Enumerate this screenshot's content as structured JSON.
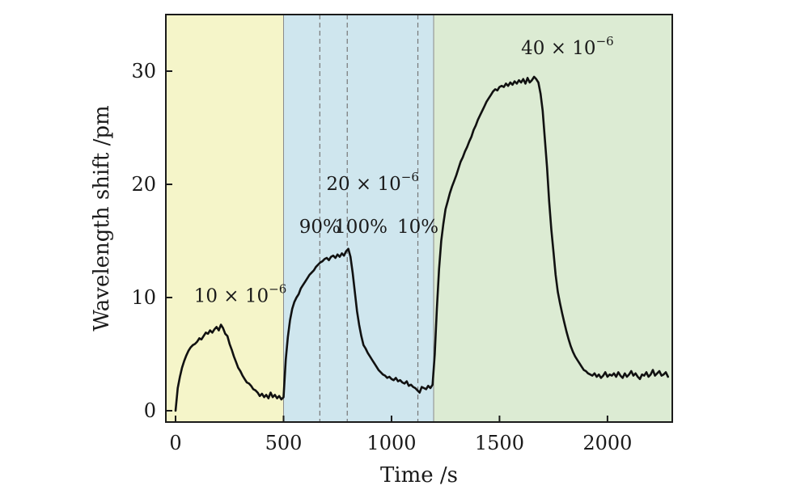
{
  "chart_data": {
    "type": "line",
    "title": "",
    "xlabel": "Time /s",
    "ylabel": "Wavelength shift /pm",
    "xlim": [
      -45,
      2300
    ],
    "ylim": [
      -1,
      35
    ],
    "xticks": [
      0,
      500,
      1000,
      1500,
      2000
    ],
    "yticks": [
      0,
      10,
      20,
      30
    ],
    "grid": false,
    "regions": [
      {
        "name": "10 ppm region",
        "x0": -45,
        "x1": 500,
        "color": "#f5f5c9"
      },
      {
        "name": "20 ppm region",
        "x0": 500,
        "x1": 1195,
        "color": "#cfe6ee"
      },
      {
        "name": "40 ppm region",
        "x0": 1195,
        "x1": 2300,
        "color": "#dcebd3"
      }
    ],
    "vlines": [
      {
        "name": "90-percent-line",
        "x": 668
      },
      {
        "name": "100-percent-line",
        "x": 795
      },
      {
        "name": "10-percent-line",
        "x": 1122
      }
    ],
    "annotations": [
      {
        "name": "conc-10",
        "base": "10 × 10",
        "sup": "−6",
        "x": 85,
        "y": 9.6
      },
      {
        "name": "conc-20",
        "base": "20 × 10",
        "sup": "−6",
        "x": 698,
        "y": 19.5
      },
      {
        "name": "conc-40",
        "base": "40 × 10",
        "sup": "−6",
        "x": 1600,
        "y": 31.5
      },
      {
        "name": "pct-90",
        "base": "90%",
        "x": 668,
        "y": 15.7,
        "anchor": "middle"
      },
      {
        "name": "pct-100",
        "base": "100%",
        "x": 858,
        "y": 15.7,
        "anchor": "middle"
      },
      {
        "name": "pct-10",
        "base": "10%",
        "x": 1122,
        "y": 15.7,
        "anchor": "middle"
      }
    ],
    "series": [
      {
        "name": "Wavelength shift",
        "color": "#111111",
        "points": [
          [
            0,
            0
          ],
          [
            10,
            2
          ],
          [
            20,
            3
          ],
          [
            30,
            3.8
          ],
          [
            40,
            4.4
          ],
          [
            50,
            4.9
          ],
          [
            60,
            5.3
          ],
          [
            70,
            5.6
          ],
          [
            80,
            5.8
          ],
          [
            90,
            5.9
          ],
          [
            100,
            6.1
          ],
          [
            110,
            6.4
          ],
          [
            120,
            6.3
          ],
          [
            130,
            6.6
          ],
          [
            140,
            6.9
          ],
          [
            150,
            6.8
          ],
          [
            160,
            7.1
          ],
          [
            170,
            6.9
          ],
          [
            180,
            7.2
          ],
          [
            190,
            7.4
          ],
          [
            200,
            7.1
          ],
          [
            210,
            7.6
          ],
          [
            220,
            7.3
          ],
          [
            230,
            6.8
          ],
          [
            240,
            6.6
          ],
          [
            250,
            5.9
          ],
          [
            260,
            5.4
          ],
          [
            270,
            4.8
          ],
          [
            280,
            4.3
          ],
          [
            290,
            3.8
          ],
          [
            300,
            3.5
          ],
          [
            310,
            3.1
          ],
          [
            320,
            2.8
          ],
          [
            330,
            2.5
          ],
          [
            340,
            2.4
          ],
          [
            350,
            2.2
          ],
          [
            360,
            1.9
          ],
          [
            370,
            1.8
          ],
          [
            380,
            1.6
          ],
          [
            390,
            1.3
          ],
          [
            400,
            1.5
          ],
          [
            410,
            1.2
          ],
          [
            420,
            1.4
          ],
          [
            430,
            1.1
          ],
          [
            440,
            1.6
          ],
          [
            450,
            1.2
          ],
          [
            460,
            1.4
          ],
          [
            470,
            1.1
          ],
          [
            480,
            1.3
          ],
          [
            490,
            1.0
          ],
          [
            500,
            1.2
          ],
          [
            510,
            4.5
          ],
          [
            520,
            6.5
          ],
          [
            530,
            8.0
          ],
          [
            540,
            9.0
          ],
          [
            550,
            9.6
          ],
          [
            560,
            10.0
          ],
          [
            570,
            10.3
          ],
          [
            580,
            10.8
          ],
          [
            590,
            11.1
          ],
          [
            600,
            11.4
          ],
          [
            610,
            11.7
          ],
          [
            620,
            12.0
          ],
          [
            630,
            12.2
          ],
          [
            640,
            12.4
          ],
          [
            650,
            12.7
          ],
          [
            660,
            12.9
          ],
          [
            670,
            13.1
          ],
          [
            680,
            13.2
          ],
          [
            690,
            13.4
          ],
          [
            700,
            13.5
          ],
          [
            710,
            13.3
          ],
          [
            720,
            13.6
          ],
          [
            730,
            13.7
          ],
          [
            740,
            13.5
          ],
          [
            750,
            13.8
          ],
          [
            760,
            13.6
          ],
          [
            770,
            13.9
          ],
          [
            780,
            13.7
          ],
          [
            790,
            14.1
          ],
          [
            800,
            14.3
          ],
          [
            810,
            13.6
          ],
          [
            820,
            12.2
          ],
          [
            830,
            10.5
          ],
          [
            840,
            8.8
          ],
          [
            850,
            7.6
          ],
          [
            860,
            6.6
          ],
          [
            870,
            5.8
          ],
          [
            880,
            5.5
          ],
          [
            890,
            5.1
          ],
          [
            900,
            4.8
          ],
          [
            910,
            4.5
          ],
          [
            920,
            4.2
          ],
          [
            930,
            3.9
          ],
          [
            940,
            3.6
          ],
          [
            950,
            3.4
          ],
          [
            960,
            3.2
          ],
          [
            970,
            3.1
          ],
          [
            980,
            2.9
          ],
          [
            990,
            3.0
          ],
          [
            1000,
            2.8
          ],
          [
            1010,
            2.7
          ],
          [
            1020,
            2.9
          ],
          [
            1030,
            2.6
          ],
          [
            1040,
            2.7
          ],
          [
            1050,
            2.5
          ],
          [
            1060,
            2.4
          ],
          [
            1070,
            2.6
          ],
          [
            1080,
            2.2
          ],
          [
            1090,
            2.3
          ],
          [
            1100,
            2.1
          ],
          [
            1110,
            2.0
          ],
          [
            1120,
            1.8
          ],
          [
            1130,
            1.6
          ],
          [
            1140,
            2.1
          ],
          [
            1150,
            2.0
          ],
          [
            1160,
            1.9
          ],
          [
            1170,
            2.2
          ],
          [
            1180,
            2.0
          ],
          [
            1190,
            2.3
          ],
          [
            1200,
            5.0
          ],
          [
            1210,
            9.0
          ],
          [
            1220,
            12.5
          ],
          [
            1230,
            15.0
          ],
          [
            1240,
            16.5
          ],
          [
            1250,
            17.8
          ],
          [
            1260,
            18.5
          ],
          [
            1270,
            19.2
          ],
          [
            1280,
            19.8
          ],
          [
            1290,
            20.3
          ],
          [
            1300,
            20.8
          ],
          [
            1310,
            21.4
          ],
          [
            1320,
            22.0
          ],
          [
            1330,
            22.4
          ],
          [
            1340,
            22.9
          ],
          [
            1350,
            23.3
          ],
          [
            1360,
            23.8
          ],
          [
            1370,
            24.2
          ],
          [
            1380,
            24.8
          ],
          [
            1390,
            25.2
          ],
          [
            1400,
            25.7
          ],
          [
            1410,
            26.1
          ],
          [
            1420,
            26.5
          ],
          [
            1430,
            26.9
          ],
          [
            1440,
            27.3
          ],
          [
            1450,
            27.6
          ],
          [
            1460,
            27.9
          ],
          [
            1470,
            28.2
          ],
          [
            1480,
            28.4
          ],
          [
            1490,
            28.3
          ],
          [
            1500,
            28.6
          ],
          [
            1510,
            28.7
          ],
          [
            1520,
            28.6
          ],
          [
            1530,
            28.9
          ],
          [
            1540,
            28.7
          ],
          [
            1550,
            29.0
          ],
          [
            1560,
            28.8
          ],
          [
            1570,
            29.1
          ],
          [
            1580,
            28.9
          ],
          [
            1590,
            29.2
          ],
          [
            1600,
            29.0
          ],
          [
            1610,
            29.3
          ],
          [
            1620,
            28.9
          ],
          [
            1630,
            29.4
          ],
          [
            1640,
            29.0
          ],
          [
            1650,
            29.2
          ],
          [
            1660,
            29.5
          ],
          [
            1670,
            29.3
          ],
          [
            1680,
            29.0
          ],
          [
            1690,
            28.0
          ],
          [
            1700,
            26.5
          ],
          [
            1710,
            24.0
          ],
          [
            1720,
            21.5
          ],
          [
            1730,
            18.5
          ],
          [
            1740,
            16.0
          ],
          [
            1750,
            14.0
          ],
          [
            1760,
            12.0
          ],
          [
            1770,
            10.5
          ],
          [
            1780,
            9.5
          ],
          [
            1790,
            8.6
          ],
          [
            1800,
            7.8
          ],
          [
            1810,
            7.0
          ],
          [
            1820,
            6.3
          ],
          [
            1830,
            5.7
          ],
          [
            1840,
            5.2
          ],
          [
            1850,
            4.8
          ],
          [
            1860,
            4.5
          ],
          [
            1870,
            4.2
          ],
          [
            1880,
            3.9
          ],
          [
            1890,
            3.6
          ],
          [
            1900,
            3.5
          ],
          [
            1910,
            3.3
          ],
          [
            1920,
            3.2
          ],
          [
            1930,
            3.1
          ],
          [
            1940,
            3.3
          ],
          [
            1950,
            3.0
          ],
          [
            1960,
            3.2
          ],
          [
            1970,
            2.9
          ],
          [
            1980,
            3.1
          ],
          [
            1990,
            3.4
          ],
          [
            2000,
            3.0
          ],
          [
            2010,
            3.2
          ],
          [
            2020,
            3.1
          ],
          [
            2030,
            3.3
          ],
          [
            2040,
            3.0
          ],
          [
            2050,
            3.4
          ],
          [
            2060,
            3.1
          ],
          [
            2070,
            2.9
          ],
          [
            2080,
            3.3
          ],
          [
            2090,
            3.0
          ],
          [
            2100,
            3.2
          ],
          [
            2110,
            3.5
          ],
          [
            2120,
            3.1
          ],
          [
            2130,
            3.3
          ],
          [
            2140,
            3.0
          ],
          [
            2150,
            2.8
          ],
          [
            2160,
            3.2
          ],
          [
            2170,
            3.1
          ],
          [
            2180,
            3.4
          ],
          [
            2190,
            3.0
          ],
          [
            2200,
            3.2
          ],
          [
            2210,
            3.6
          ],
          [
            2220,
            3.1
          ],
          [
            2230,
            3.3
          ],
          [
            2240,
            3.5
          ],
          [
            2250,
            3.1
          ],
          [
            2260,
            3.2
          ],
          [
            2270,
            3.4
          ],
          [
            2280,
            3.0
          ]
        ]
      }
    ]
  }
}
